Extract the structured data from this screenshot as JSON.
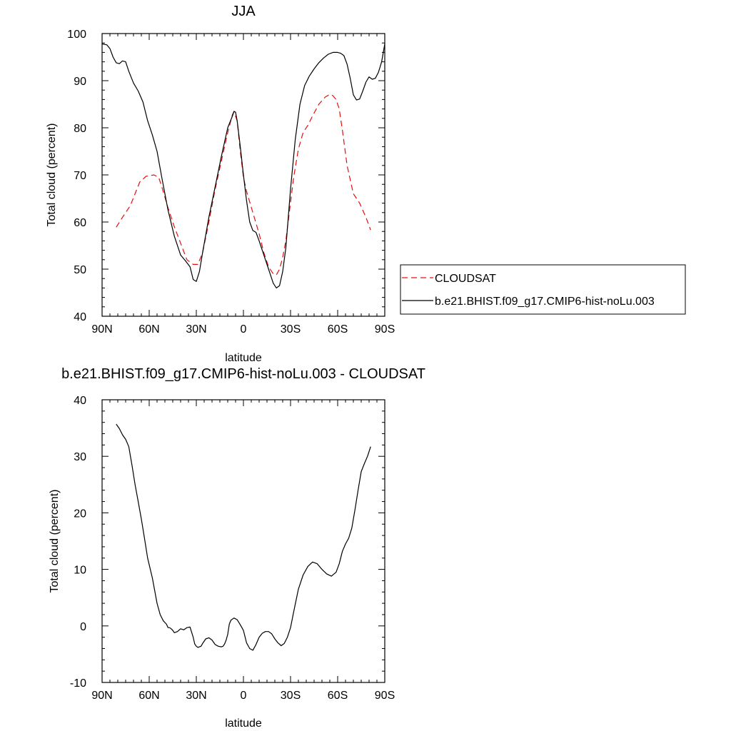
{
  "chart_data": [
    {
      "type": "line",
      "title": "JJA",
      "xlabel": "latitude",
      "ylabel": "Total cloud (percent)",
      "xlim": [
        90,
        -90
      ],
      "ylim": [
        40,
        100
      ],
      "xticks": [
        90,
        60,
        30,
        0,
        -30,
        -60,
        -90
      ],
      "xtick_labels": [
        "90N",
        "60N",
        "30N",
        "0",
        "30S",
        "60S",
        "90S"
      ],
      "yticks": [
        40,
        50,
        60,
        70,
        80,
        90,
        100
      ],
      "ytick_labels": [
        "40",
        "50",
        "60",
        "70",
        "80",
        "90",
        "100"
      ],
      "grid": false,
      "legend": "right",
      "series": [
        {
          "name": "CLOUDSAT",
          "color": "#e01010",
          "dash": "dashed",
          "x": [
            81,
            78,
            72,
            66,
            62,
            57,
            54,
            52,
            48,
            44,
            40,
            36,
            32,
            29,
            26,
            22,
            18,
            14,
            10,
            7,
            6,
            4,
            2,
            0,
            -2,
            -6,
            -10,
            -13,
            -16,
            -19,
            -21,
            -23,
            -25,
            -27,
            -29,
            -32,
            -35,
            -38,
            -41,
            -44,
            -48,
            -52,
            -55,
            -57,
            -59,
            -61,
            -63,
            -66,
            -70,
            -74,
            -78,
            -81
          ],
          "y": [
            58.9,
            60.5,
            63.5,
            68.5,
            69.7,
            70.0,
            69.5,
            67.5,
            63.0,
            59.0,
            55.5,
            52.0,
            51.0,
            51.0,
            53.5,
            60.0,
            67.0,
            73.0,
            79.0,
            82.8,
            83.4,
            81.5,
            75.0,
            69.5,
            66.5,
            62.0,
            57.5,
            53.5,
            50.5,
            49.0,
            48.8,
            50.0,
            52.5,
            56.0,
            61.5,
            69.5,
            75.5,
            79.0,
            80.5,
            82.5,
            85.0,
            86.5,
            87.1,
            86.8,
            86.0,
            84.0,
            79.5,
            72.0,
            66.0,
            64.0,
            61.0,
            58.3
          ]
        },
        {
          "name": "b.e21.BHIST.f09_g17.CMIP6-hist-noLu.003",
          "color": "#000000",
          "dash": "solid",
          "x": [
            90,
            87,
            85,
            83,
            81,
            79,
            77,
            75,
            73,
            70,
            67,
            64,
            61,
            58,
            55,
            52,
            48,
            44,
            40,
            37,
            34,
            32,
            30,
            28,
            26,
            22,
            18,
            14,
            10,
            7,
            6,
            5,
            4,
            2,
            0,
            -2,
            -4,
            -6,
            -8,
            -10,
            -13,
            -16,
            -19,
            -21,
            -23,
            -25,
            -27,
            -30,
            -33,
            -36,
            -39,
            -42,
            -45,
            -48,
            -51,
            -54,
            -57,
            -60,
            -62,
            -64,
            -66,
            -68,
            -70,
            -72,
            -74,
            -76,
            -78,
            -80,
            -82,
            -84,
            -86,
            -88,
            -90
          ],
          "y": [
            97.8,
            97.6,
            96.8,
            95.0,
            93.8,
            93.6,
            94.2,
            94.0,
            92.0,
            89.5,
            87.8,
            85.5,
            81.5,
            78.5,
            75.0,
            69.5,
            62.5,
            57.0,
            53.0,
            51.8,
            50.5,
            47.8,
            47.4,
            49.5,
            53.5,
            61.0,
            67.5,
            74.0,
            80.0,
            82.5,
            83.5,
            83.3,
            81.5,
            76.0,
            70.0,
            64.5,
            60.0,
            58.2,
            57.8,
            56.0,
            53.0,
            50.0,
            47.0,
            46.0,
            46.5,
            49.5,
            54.5,
            67.0,
            77.5,
            85.0,
            89.0,
            91.0,
            92.5,
            93.8,
            94.8,
            95.6,
            96.0,
            96.0,
            95.8,
            95.3,
            93.5,
            90.5,
            87.0,
            85.9,
            86.1,
            87.8,
            89.7,
            90.8,
            90.3,
            90.5,
            91.8,
            94.0,
            97.8
          ]
        }
      ]
    },
    {
      "type": "line",
      "title": "b.e21.BHIST.f09_g17.CMIP6-hist-noLu.003 - CLOUDSAT",
      "xlabel": "latitude",
      "ylabel": "Total cloud (percent)",
      "xlim": [
        90,
        -90
      ],
      "ylim": [
        -10,
        40
      ],
      "xticks": [
        90,
        60,
        30,
        0,
        -30,
        -60,
        -90
      ],
      "xtick_labels": [
        "90N",
        "60N",
        "30N",
        "0",
        "30S",
        "60S",
        "90S"
      ],
      "yticks": [
        -10,
        0,
        10,
        20,
        30,
        40
      ],
      "ytick_labels": [
        "-10",
        "0",
        "10",
        "20",
        "30",
        "40"
      ],
      "grid": false,
      "legend": "none",
      "series": [
        {
          "color": "#000000",
          "dash": "solid",
          "x": [
            81,
            79,
            77,
            75,
            73,
            71,
            69,
            67,
            65,
            63,
            61,
            58,
            55,
            53,
            51,
            49,
            48,
            47,
            46,
            45,
            44,
            42,
            40,
            38,
            36,
            34,
            32,
            31,
            30,
            29,
            28,
            27,
            26,
            24,
            22,
            20,
            18,
            16,
            14,
            13,
            12,
            11,
            10,
            9,
            8,
            6,
            4,
            2,
            0,
            -2,
            -4,
            -6,
            -8,
            -10,
            -12,
            -14,
            -16,
            -18,
            -20,
            -22,
            -24,
            -26,
            -28,
            -30,
            -32,
            -35,
            -38,
            -41,
            -44,
            -47,
            -50,
            -53,
            -56,
            -59,
            -61,
            -63,
            -65,
            -67,
            -69,
            -71,
            -73,
            -75,
            -77,
            -79,
            -81
          ],
          "y": [
            35.7,
            34.9,
            33.8,
            33.0,
            31.7,
            28.5,
            25.0,
            22.0,
            18.9,
            15.5,
            12.0,
            8.5,
            4.0,
            2.0,
            0.9,
            0.3,
            -0.3,
            -0.3,
            -0.5,
            -0.8,
            -1.2,
            -1.0,
            -0.5,
            -0.7,
            -0.3,
            -0.2,
            -2.0,
            -3.2,
            -3.6,
            -3.8,
            -3.7,
            -3.6,
            -3.1,
            -2.3,
            -2.1,
            -2.5,
            -3.3,
            -3.6,
            -3.7,
            -3.6,
            -3.2,
            -2.5,
            -1.5,
            0.3,
            1.0,
            1.4,
            1.1,
            0.2,
            -0.8,
            -3.0,
            -4.0,
            -4.3,
            -3.3,
            -2.0,
            -1.3,
            -1.0,
            -1.0,
            -1.4,
            -2.3,
            -3.0,
            -3.5,
            -3.1,
            -2.0,
            -0.3,
            2.5,
            6.5,
            9.0,
            10.5,
            11.3,
            11.0,
            10.0,
            9.2,
            8.8,
            9.5,
            11.0,
            13.2,
            14.5,
            15.5,
            17.3,
            20.5,
            24.0,
            27.3,
            28.7,
            30.0,
            31.7
          ]
        }
      ]
    }
  ]
}
